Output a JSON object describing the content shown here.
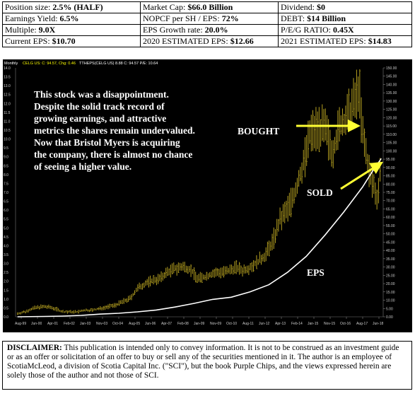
{
  "metrics": {
    "rows": [
      [
        {
          "label": "Position size:",
          "value": "2.5% (HALF)"
        },
        {
          "label": "Market Cap:",
          "value": "$66.0 Billion"
        },
        {
          "label": "Dividend:",
          "value": "$0"
        }
      ],
      [
        {
          "label": "Earnings Yield:",
          "value": "6.5%"
        },
        {
          "label": "NOPCF per SH / EPS:",
          "value": "72%"
        },
        {
          "label": "DEBT:",
          "value": "$14 Billion"
        }
      ],
      [
        {
          "label": "Multiple:",
          "value": "9.0X"
        },
        {
          "label": "EPS Growth rate:",
          "value": "20.0%"
        },
        {
          "label": "P/E/G RATIO:",
          "value": "0.45X"
        }
      ],
      [
        {
          "label": "Current EPS:",
          "value": "$10.70"
        },
        {
          "label": "2020 ESTIMATED EPS:",
          "value": "$12.66"
        },
        {
          "label": "2021 ESTIMATED EPS:",
          "value": "$14.83"
        }
      ]
    ]
  },
  "chart_header": {
    "period": "Monthly",
    "quote": "CELG US: C: 94.57, Chg: 0.46",
    "eps_line": "TTHEPS(CELG US) 8.88  C: 94.57  P/E: 10.64"
  },
  "chart_data": {
    "type": "bar",
    "description_text": "This stock was a disappointment. Despite the solid track record of growing earnings, and attractive metrics the shares remain undervalued. Now that Bristol Myers is acquiring the company, there is almost no chance of seeing a higher value.",
    "annotations": {
      "bought": "BOUGHT",
      "sold": "SOLD",
      "eps": "EPS"
    },
    "x_tick_labels": [
      "Aug-99",
      "Jun-00",
      "Apr-01",
      "Feb-02",
      "Jan-03",
      "Nov-03",
      "Oct-04",
      "Aug-05",
      "Jun-06",
      "Apr-07",
      "Feb-08",
      "Jan-09",
      "Nov-09",
      "Oct-10",
      "Aug-11",
      "Jun-12",
      "Apr-13",
      "Feb-14",
      "Jan-15",
      "Nov-15",
      "Oct-16",
      "Aug-17",
      "Jun-18"
    ],
    "left_axis": {
      "ylim": [
        0,
        14
      ],
      "ticks": [
        "14.0",
        "13.5",
        "13.0",
        "12.5",
        "12.0",
        "11.5",
        "11.0",
        "10.5",
        "10.0",
        "9.5",
        "9.0",
        "8.5",
        "8.0",
        "7.5",
        "7.0",
        "6.5",
        "6.0",
        "5.5",
        "5.0",
        "4.5",
        "4.0",
        "3.5",
        "3.0",
        "2.5",
        "2.0",
        "1.5",
        "1.0",
        "0.5",
        "0.0"
      ]
    },
    "right_axis": {
      "ylim": [
        0,
        150
      ],
      "ticks": [
        "150.00",
        "145.00",
        "140.00",
        "135.00",
        "130.00",
        "125.00",
        "120.00",
        "115.00",
        "110.00",
        "105.00",
        "100.00",
        "95.00",
        "90.00",
        "85.00",
        "80.00",
        "75.00",
        "70.00",
        "65.00",
        "60.00",
        "55.00",
        "50.00",
        "45.00",
        "40.00",
        "35.00",
        "30.00",
        "25.00",
        "20.00",
        "15.00",
        "10.00",
        "5.00",
        "0.00"
      ]
    },
    "price_series": {
      "name": "CELG US",
      "color": "#b5a020",
      "x": [
        1999.6,
        2000.0,
        2000.4,
        2000.8,
        2001.2,
        2001.6,
        2002.0,
        2002.4,
        2002.8,
        2003.2,
        2003.6,
        2004.0,
        2004.4,
        2004.8,
        2005.2,
        2005.6,
        2006.0,
        2006.4,
        2006.8,
        2007.2,
        2007.6,
        2008.0,
        2008.4,
        2008.8,
        2009.2,
        2009.6,
        2010.0,
        2010.4,
        2010.8,
        2011.2,
        2011.6,
        2012.0,
        2012.4,
        2012.8,
        2013.2,
        2013.6,
        2014.0,
        2014.4,
        2014.8,
        2015.2,
        2015.6,
        2016.0,
        2016.4,
        2016.8,
        2017.2,
        2017.6,
        2017.8,
        2018.0,
        2018.4,
        2018.8,
        2019.0
      ],
      "y": [
        2,
        3,
        5,
        6,
        6,
        5,
        3,
        3,
        3,
        4,
        4,
        5,
        6,
        7,
        9,
        11,
        17,
        20,
        22,
        23,
        27,
        29,
        30,
        29,
        23,
        24,
        26,
        27,
        27,
        30,
        28,
        30,
        33,
        37,
        45,
        58,
        65,
        75,
        90,
        110,
        115,
        112,
        100,
        115,
        120,
        130,
        140,
        110,
        85,
        72,
        94.57
      ]
    },
    "eps_series": {
      "name": "TTHEPS(CELG US)",
      "color": "#ffffff",
      "x": [
        1999.6,
        2001.0,
        2002.0,
        2003.0,
        2004.0,
        2005.0,
        2006.0,
        2007.0,
        2008.0,
        2009.0,
        2010.0,
        2011.0,
        2012.0,
        2013.0,
        2014.0,
        2015.0,
        2016.0,
        2017.0,
        2018.0,
        2018.6,
        2019.0
      ],
      "y": [
        0,
        0.02,
        0.04,
        0.08,
        0.15,
        0.2,
        0.28,
        0.38,
        0.55,
        0.75,
        0.98,
        1.1,
        1.4,
        1.8,
        2.5,
        3.4,
        4.6,
        5.9,
        7.3,
        8.3,
        8.9
      ]
    }
  },
  "disclaimer": {
    "heading": "DISCLAIMER:",
    "text": "This publication is intended only to convey information.  It is not to be construed as an investment guide or as an offer or solicitation of an offer to buy or sell any of the securities mentioned in it. The author is an employee of ScotiaMcLeod, a division of Scotia Capital Inc. (\"SCI\"), but the book Purple Chips, and the views expressed herein are solely those of the author and not those of SCI."
  },
  "colors": {
    "background": "#000000",
    "price": "#b5a020",
    "eps": "#ffffff",
    "arrow": "#ffff33",
    "text": "#ffffff",
    "header_highlight": "#ffff00"
  }
}
